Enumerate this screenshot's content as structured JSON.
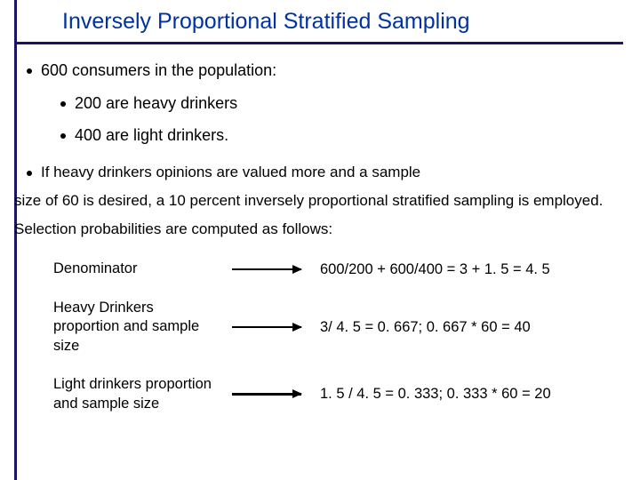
{
  "title": "Inversely  Proportional Stratified Sampling",
  "colors": {
    "accent": "#1b1464",
    "title_color": "#0033a0",
    "text_color": "#000000",
    "background": "#ffffff"
  },
  "typography": {
    "title_fontsize": 25,
    "body_fontsize": 18,
    "para_fontsize": 17,
    "calc_fontsize": 16.5,
    "font_family": "Verdana"
  },
  "bullets": {
    "main": "600 consumers in the population:",
    "sub1": "200 are heavy drinkers",
    "sub2": "400 are light drinkers."
  },
  "paragraph": {
    "lead": "If heavy drinkers opinions are valued more and a sample",
    "rest": "size of 60 is desired, a 10 percent inversely proportional stratified sampling is employed.  Selection probabilities are computed as follows:"
  },
  "calc": {
    "rows": [
      {
        "label": "Denominator",
        "value": "600/200 + 600/400 = 3 + 1. 5 = 4. 5"
      },
      {
        "label": "Heavy Drinkers proportion and sample size",
        "value": "3/ 4. 5 = 0. 667; 0. 667 * 60 = 40"
      },
      {
        "label": "Light drinkers proportion and sample size",
        "value": "1. 5 / 4. 5 = 0. 333; 0. 333 * 60 = 20"
      }
    ]
  }
}
